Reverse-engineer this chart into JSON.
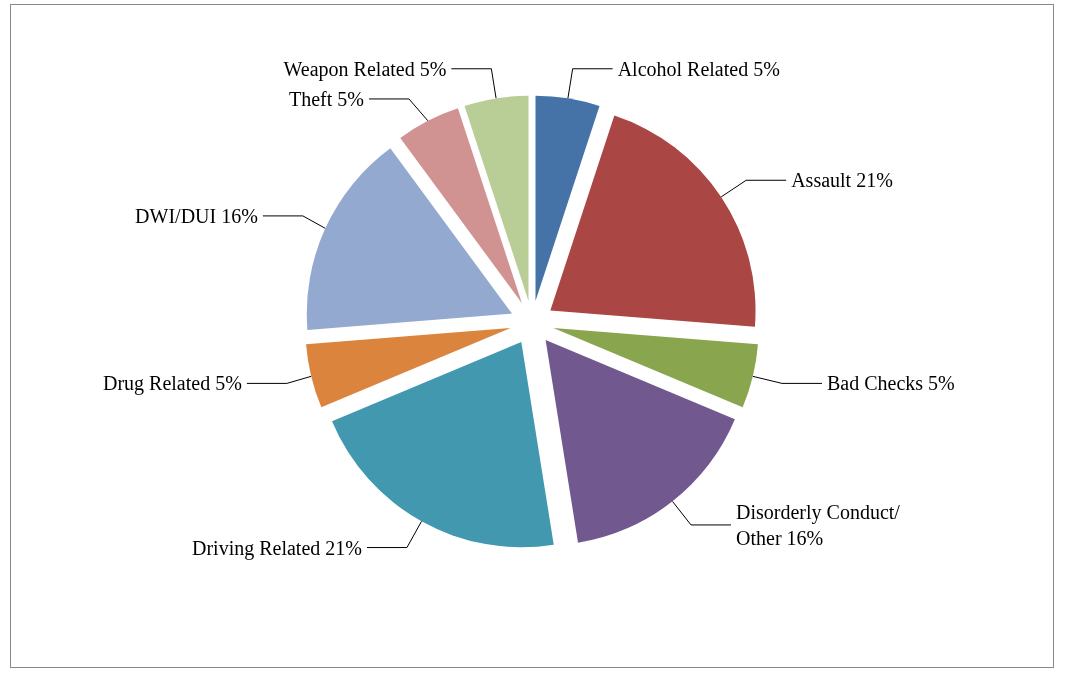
{
  "chart_data": {
    "type": "pie",
    "categories": [
      "Alcohol Related",
      "Assault",
      "Bad Checks",
      "Disorderly Conduct/Other",
      "Driving Related",
      "Drug Related",
      "DWI/DUI",
      "Theft",
      "Weapon Related"
    ],
    "values": [
      5,
      21,
      5,
      16,
      21,
      5,
      16,
      5,
      5
    ],
    "value_labels": [
      "5%",
      "21%",
      "5%",
      "16%",
      "21%",
      "5%",
      "16%",
      "5%",
      "5%"
    ],
    "colors": [
      "#4572a7",
      "#aa4643",
      "#89a54e",
      "#71588f",
      "#4198af",
      "#db843d",
      "#93a9cf",
      "#d19392",
      "#b9cd96"
    ],
    "legend": false
  }
}
